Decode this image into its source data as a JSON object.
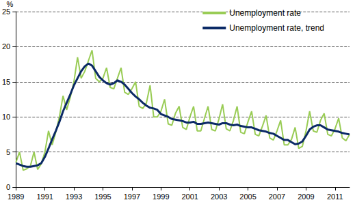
{
  "chart_data": {
    "type": "line",
    "ylabel": "%",
    "categories": [
      "1989",
      null,
      null,
      null,
      null,
      null,
      null,
      null,
      "1991",
      null,
      null,
      null,
      null,
      null,
      null,
      null,
      "1993",
      null,
      null,
      null,
      null,
      null,
      null,
      null,
      "1995",
      null,
      null,
      null,
      null,
      null,
      null,
      null,
      "1997",
      null,
      null,
      null,
      null,
      null,
      null,
      null,
      "1999",
      null,
      null,
      null,
      null,
      null,
      null,
      null,
      "2001",
      null,
      null,
      null,
      null,
      null,
      null,
      null,
      "2003",
      null,
      null,
      null,
      null,
      null,
      null,
      null,
      "2005",
      null,
      null,
      null,
      null,
      null,
      null,
      null,
      "2007",
      null,
      null,
      null,
      null,
      null,
      null,
      null,
      "2009",
      null,
      null,
      null,
      null,
      null,
      null,
      null,
      "2011",
      null,
      null,
      null,
      null
    ],
    "series": [
      {
        "name": "Unemployment rate",
        "color": "#99cc55",
        "values": [
          3.5,
          5.0,
          2.4,
          2.6,
          3.0,
          5.0,
          2.5,
          3.3,
          5.0,
          8.0,
          6.0,
          7.8,
          10.0,
          13.0,
          11.0,
          12.8,
          15.0,
          18.5,
          15.5,
          16.5,
          18.0,
          19.5,
          15.5,
          15.0,
          15.5,
          17.0,
          14.2,
          14.0,
          15.5,
          17.0,
          13.5,
          13.2,
          14.0,
          15.0,
          11.5,
          11.2,
          12.0,
          14.5,
          10.0,
          10.0,
          10.8,
          12.5,
          9.0,
          8.8,
          10.5,
          11.5,
          8.5,
          8.2,
          10.0,
          11.5,
          8.0,
          8.0,
          9.8,
          11.5,
          8.2,
          8.0,
          9.7,
          11.8,
          8.3,
          8.0,
          9.5,
          11.5,
          7.8,
          7.6,
          9.3,
          10.8,
          7.5,
          7.3,
          8.7,
          10.2,
          7.0,
          6.7,
          8.0,
          9.5,
          6.0,
          6.0,
          6.8,
          8.5,
          5.5,
          5.8,
          8.0,
          10.8,
          8.0,
          7.8,
          9.5,
          10.5,
          7.5,
          7.3,
          8.3,
          9.8,
          7.0,
          6.6,
          7.5
        ]
      },
      {
        "name": "Unemployment rate, trend",
        "color": "#0b2a66",
        "values": [
          3.4,
          3.2,
          3.0,
          2.9,
          2.9,
          3.0,
          3.1,
          3.4,
          4.3,
          5.5,
          6.8,
          8.0,
          9.3,
          10.8,
          12.0,
          13.2,
          14.5,
          15.5,
          16.5,
          17.2,
          17.6,
          17.3,
          16.5,
          15.7,
          15.2,
          14.8,
          14.6,
          14.8,
          15.2,
          15.0,
          14.6,
          14.0,
          13.4,
          12.9,
          12.5,
          12.0,
          11.6,
          11.3,
          11.2,
          11.0,
          10.4,
          10.2,
          10.0,
          9.7,
          9.6,
          9.5,
          9.4,
          9.2,
          9.2,
          9.3,
          9.0,
          9.0,
          9.1,
          9.2,
          9.1,
          9.0,
          8.9,
          9.1,
          9.1,
          8.9,
          8.8,
          8.9,
          8.7,
          8.6,
          8.5,
          8.5,
          8.3,
          8.1,
          8.0,
          7.9,
          7.7,
          7.6,
          7.3,
          7.0,
          6.7,
          6.7,
          6.4,
          6.1,
          6.2,
          6.5,
          7.3,
          8.2,
          8.6,
          8.8,
          8.8,
          8.5,
          8.2,
          8.1,
          8.0,
          7.9,
          7.7,
          7.6,
          7.5
        ]
      }
    ],
    "ylim": [
      0,
      25
    ],
    "yticks": [
      0,
      5,
      10,
      15,
      20,
      25
    ],
    "grid": true,
    "legend": "upper right"
  }
}
